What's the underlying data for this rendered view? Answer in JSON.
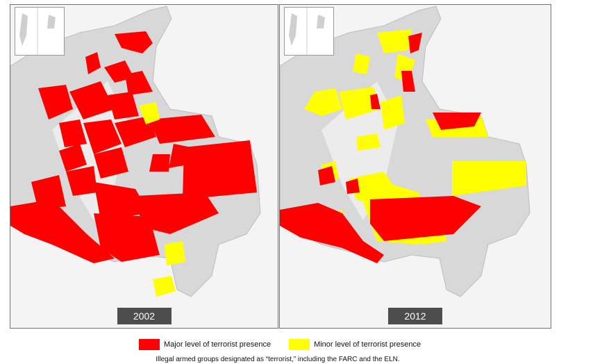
{
  "maps": [
    {
      "year": "2002"
    },
    {
      "year": "2012"
    }
  ],
  "legend": {
    "major": {
      "label": "Major level of terrorist presence",
      "color": "#ff0000"
    },
    "minor": {
      "label": "Minor level of terrorist presence",
      "color": "#ffff00"
    }
  },
  "caption": "Illegal armed groups designated as “terrorist,” including the FARC and the ELN."
}
